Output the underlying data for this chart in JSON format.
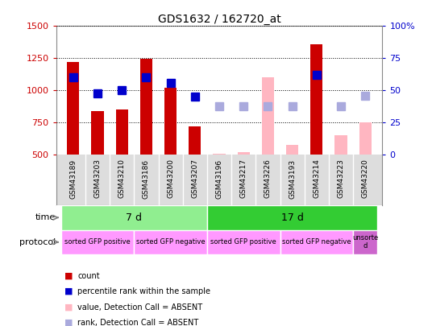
{
  "title": "GDS1632 / 162720_at",
  "samples": [
    "GSM43189",
    "GSM43203",
    "GSM43210",
    "GSM43186",
    "GSM43200",
    "GSM43207",
    "GSM43196",
    "GSM43217",
    "GSM43226",
    "GSM43193",
    "GSM43214",
    "GSM43223",
    "GSM43220"
  ],
  "red_values": [
    1220,
    840,
    850,
    1245,
    1020,
    720,
    null,
    null,
    null,
    null,
    1360,
    null,
    null
  ],
  "pink_values": [
    null,
    null,
    null,
    null,
    null,
    null,
    510,
    520,
    1100,
    580,
    null,
    650,
    750
  ],
  "blue_values": [
    1100,
    980,
    1000,
    1100,
    1060,
    955,
    null,
    null,
    null,
    null,
    1120,
    null,
    null
  ],
  "lightblue_values": [
    null,
    null,
    null,
    null,
    null,
    null,
    880,
    880,
    880,
    875,
    null,
    875,
    960
  ],
  "ylim_left": [
    500,
    1500
  ],
  "ylim_right": [
    0,
    100
  ],
  "yticks_left": [
    500,
    750,
    1000,
    1250,
    1500
  ],
  "yticks_right": [
    0,
    25,
    50,
    75,
    100
  ],
  "time_groups": [
    {
      "label": "7 d",
      "start": 0,
      "end": 5,
      "color": "#90EE90"
    },
    {
      "label": "17 d",
      "start": 6,
      "end": 12,
      "color": "#33CC33"
    }
  ],
  "protocol_groups": [
    {
      "label": "sorted GFP positive",
      "start": 0,
      "end": 2,
      "color": "#FF99FF"
    },
    {
      "label": "sorted GFP negative",
      "start": 3,
      "end": 5,
      "color": "#FF99FF"
    },
    {
      "label": "sorted GFP positive",
      "start": 6,
      "end": 8,
      "color": "#FF99FF"
    },
    {
      "label": "sorted GFP negative",
      "start": 9,
      "end": 11,
      "color": "#FF99FF"
    },
    {
      "label": "unsorte\nd",
      "start": 12,
      "end": 12,
      "color": "#CC66CC"
    }
  ],
  "bar_width": 0.5,
  "red_color": "#CC0000",
  "pink_color": "#FFB6C1",
  "blue_color": "#0000CC",
  "lightblue_color": "#AAAADD",
  "bg_color": "#FFFFFF",
  "plot_bg": "#FFFFFF",
  "label_color_left": "#CC0000",
  "label_color_right": "#0000CC",
  "tick_label_color": "#333333",
  "marker_size": 7,
  "legend_items": [
    {
      "color": "#CC0000",
      "label": "count"
    },
    {
      "color": "#0000CC",
      "label": "percentile rank within the sample"
    },
    {
      "color": "#FFB6C1",
      "label": "value, Detection Call = ABSENT"
    },
    {
      "color": "#AAAADD",
      "label": "rank, Detection Call = ABSENT"
    }
  ]
}
